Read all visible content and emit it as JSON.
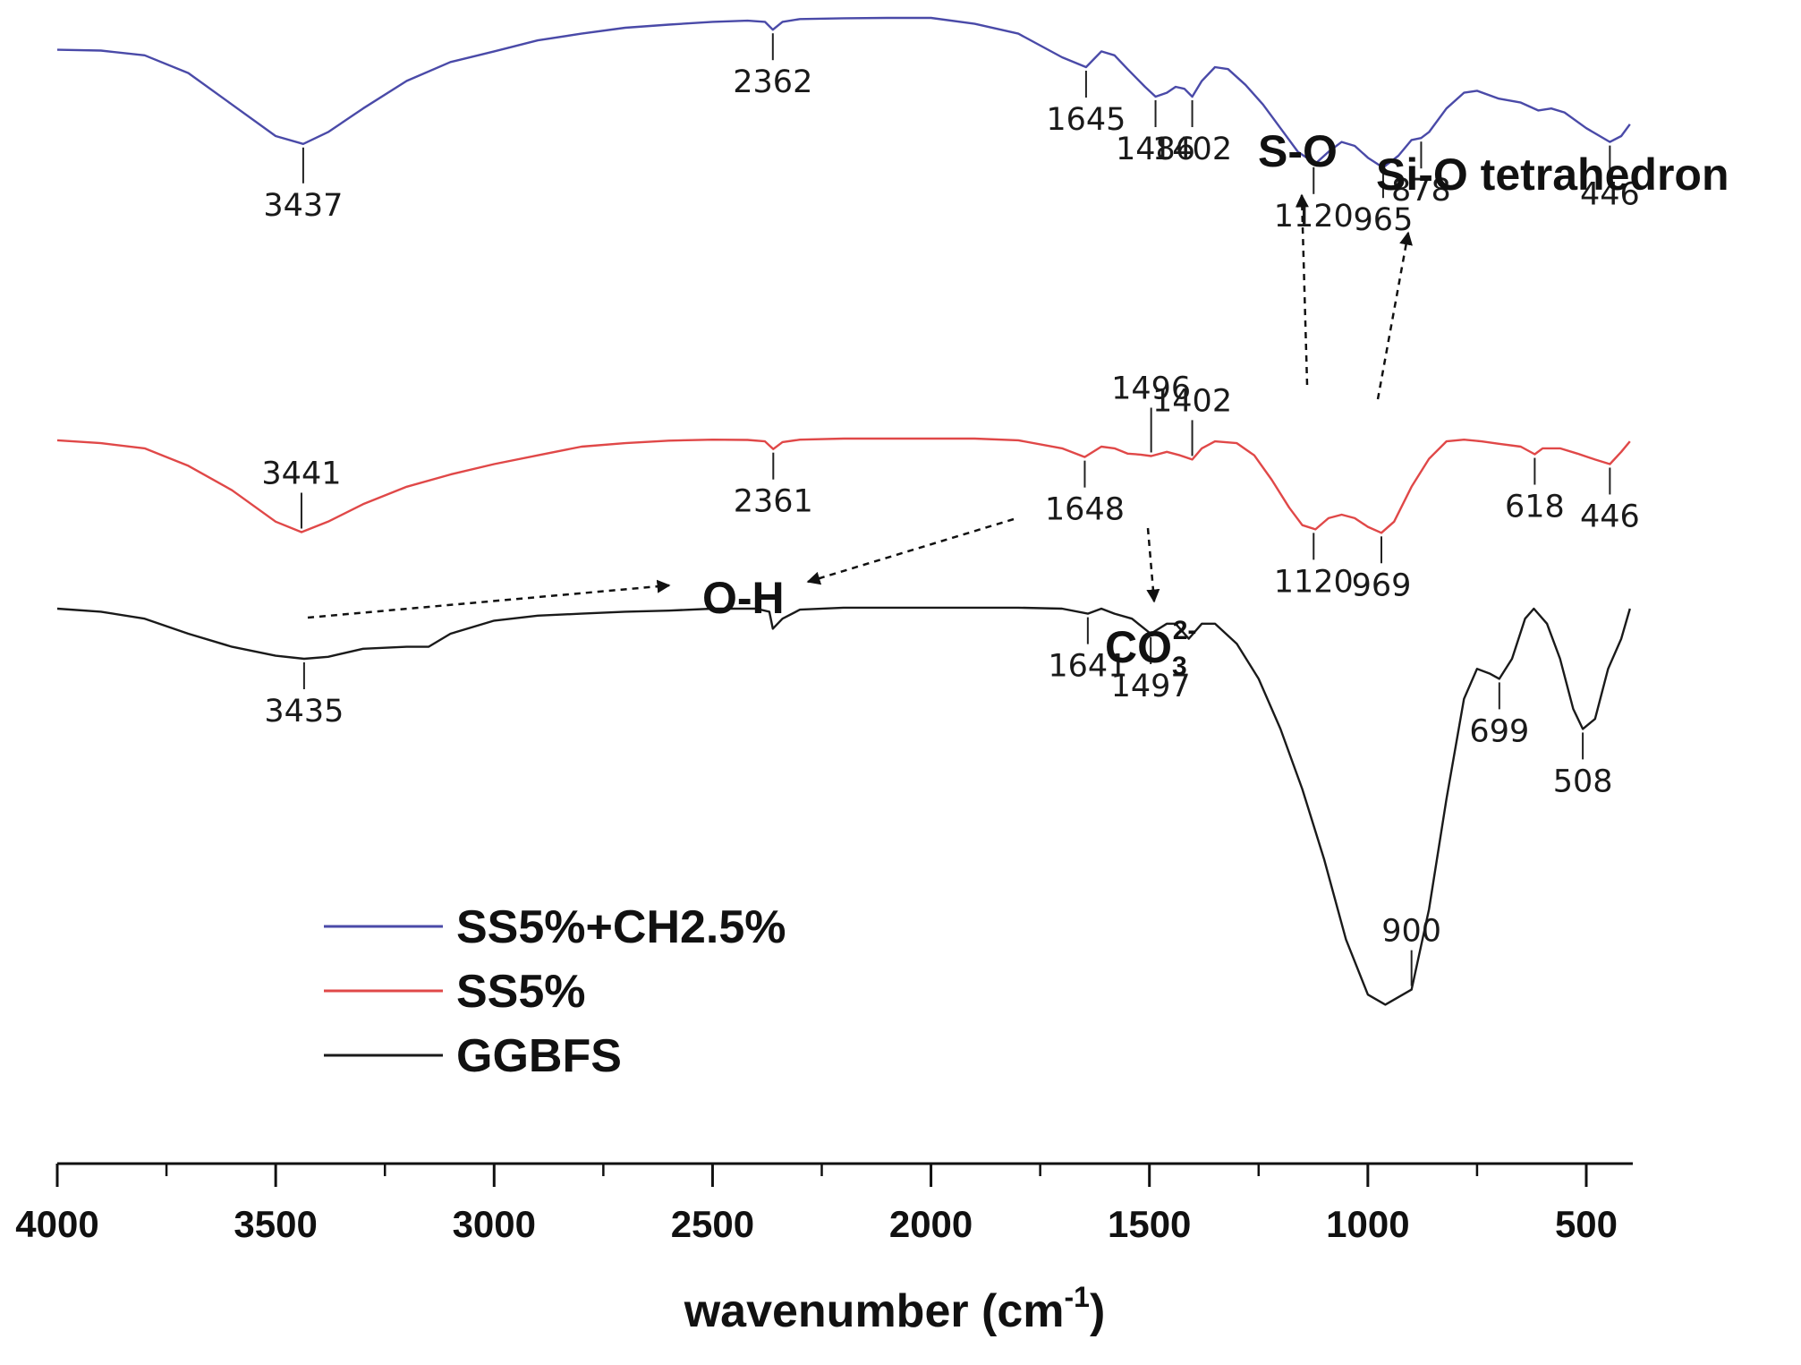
{
  "chart_data": {
    "type": "line",
    "title": "",
    "xlabel": "wavenumber (cm",
    "xlabel_superscript": "-1",
    "xlabel_suffix": ")",
    "ylabel": "",
    "xlim": [
      4000,
      400
    ],
    "x_reversed": true,
    "ylim": [
      0,
      1
    ],
    "x_ticks": [
      4000,
      3500,
      3000,
      2500,
      2000,
      1500,
      1000,
      500
    ],
    "x_tick_labels": [
      "4000",
      "3500",
      "3000",
      "2500",
      "2000",
      "1500",
      "1000",
      "500"
    ],
    "legend_position": "bottom-left",
    "series": [
      {
        "name": "SS5%+CH2.5%",
        "color": "#4a4aa8",
        "points": [
          [
            4000,
            0.919
          ],
          [
            3900,
            0.917
          ],
          [
            3800,
            0.905
          ],
          [
            3700,
            0.86
          ],
          [
            3600,
            0.78
          ],
          [
            3500,
            0.7
          ],
          [
            3437,
            0.68
          ],
          [
            3380,
            0.71
          ],
          [
            3300,
            0.77
          ],
          [
            3200,
            0.84
          ],
          [
            3100,
            0.888
          ],
          [
            3000,
            0.915
          ],
          [
            2900,
            0.943
          ],
          [
            2800,
            0.96
          ],
          [
            2700,
            0.975
          ],
          [
            2600,
            0.983
          ],
          [
            2500,
            0.99
          ],
          [
            2420,
            0.993
          ],
          [
            2380,
            0.99
          ],
          [
            2362,
            0.97
          ],
          [
            2340,
            0.99
          ],
          [
            2300,
            0.997
          ],
          [
            2200,
            0.999
          ],
          [
            2100,
            1.0
          ],
          [
            2000,
            1.0
          ],
          [
            1900,
            0.985
          ],
          [
            1800,
            0.96
          ],
          [
            1700,
            0.9
          ],
          [
            1645,
            0.875
          ],
          [
            1610,
            0.915
          ],
          [
            1580,
            0.905
          ],
          [
            1550,
            0.87
          ],
          [
            1510,
            0.825
          ],
          [
            1486,
            0.8
          ],
          [
            1460,
            0.81
          ],
          [
            1440,
            0.825
          ],
          [
            1420,
            0.82
          ],
          [
            1402,
            0.8
          ],
          [
            1380,
            0.84
          ],
          [
            1350,
            0.875
          ],
          [
            1320,
            0.87
          ],
          [
            1280,
            0.83
          ],
          [
            1240,
            0.78
          ],
          [
            1200,
            0.72
          ],
          [
            1160,
            0.66
          ],
          [
            1120,
            0.63
          ],
          [
            1090,
            0.66
          ],
          [
            1060,
            0.685
          ],
          [
            1030,
            0.675
          ],
          [
            1000,
            0.645
          ],
          [
            965,
            0.62
          ],
          [
            930,
            0.65
          ],
          [
            900,
            0.69
          ],
          [
            878,
            0.695
          ],
          [
            860,
            0.71
          ],
          [
            820,
            0.77
          ],
          [
            780,
            0.81
          ],
          [
            750,
            0.815
          ],
          [
            700,
            0.795
          ],
          [
            650,
            0.785
          ],
          [
            610,
            0.765
          ],
          [
            580,
            0.77
          ],
          [
            550,
            0.76
          ],
          [
            500,
            0.72
          ],
          [
            446,
            0.685
          ],
          [
            420,
            0.7
          ],
          [
            400,
            0.73
          ]
        ]
      },
      {
        "name": "SS5%",
        "color": "#e04848",
        "points": [
          [
            4000,
            0.713
          ],
          [
            3900,
            0.705
          ],
          [
            3800,
            0.69
          ],
          [
            3700,
            0.64
          ],
          [
            3600,
            0.57
          ],
          [
            3500,
            0.48
          ],
          [
            3441,
            0.45
          ],
          [
            3380,
            0.48
          ],
          [
            3300,
            0.53
          ],
          [
            3200,
            0.58
          ],
          [
            3100,
            0.615
          ],
          [
            3000,
            0.645
          ],
          [
            2900,
            0.67
          ],
          [
            2800,
            0.695
          ],
          [
            2700,
            0.705
          ],
          [
            2600,
            0.712
          ],
          [
            2500,
            0.715
          ],
          [
            2420,
            0.714
          ],
          [
            2380,
            0.71
          ],
          [
            2361,
            0.688
          ],
          [
            2340,
            0.708
          ],
          [
            2300,
            0.715
          ],
          [
            2200,
            0.718
          ],
          [
            2100,
            0.718
          ],
          [
            2000,
            0.718
          ],
          [
            1900,
            0.718
          ],
          [
            1800,
            0.713
          ],
          [
            1700,
            0.69
          ],
          [
            1648,
            0.665
          ],
          [
            1610,
            0.695
          ],
          [
            1580,
            0.69
          ],
          [
            1550,
            0.675
          ],
          [
            1520,
            0.672
          ],
          [
            1496,
            0.668
          ],
          [
            1460,
            0.68
          ],
          [
            1430,
            0.67
          ],
          [
            1402,
            0.658
          ],
          [
            1380,
            0.69
          ],
          [
            1350,
            0.71
          ],
          [
            1300,
            0.705
          ],
          [
            1260,
            0.67
          ],
          [
            1220,
            0.6
          ],
          [
            1180,
            0.52
          ],
          [
            1150,
            0.47
          ],
          [
            1120,
            0.458
          ],
          [
            1090,
            0.49
          ],
          [
            1060,
            0.5
          ],
          [
            1030,
            0.49
          ],
          [
            1000,
            0.465
          ],
          [
            969,
            0.448
          ],
          [
            940,
            0.48
          ],
          [
            900,
            0.58
          ],
          [
            860,
            0.66
          ],
          [
            820,
            0.71
          ],
          [
            780,
            0.715
          ],
          [
            740,
            0.71
          ],
          [
            700,
            0.703
          ],
          [
            650,
            0.695
          ],
          [
            618,
            0.673
          ],
          [
            600,
            0.69
          ],
          [
            560,
            0.69
          ],
          [
            520,
            0.675
          ],
          [
            480,
            0.658
          ],
          [
            446,
            0.645
          ],
          [
            420,
            0.68
          ],
          [
            400,
            0.71
          ]
        ]
      },
      {
        "name": "GGBFS",
        "color": "#1a1a1a",
        "points": [
          [
            4000,
            0.5
          ],
          [
            3900,
            0.497
          ],
          [
            3800,
            0.49
          ],
          [
            3700,
            0.475
          ],
          [
            3600,
            0.462
          ],
          [
            3500,
            0.453
          ],
          [
            3435,
            0.45
          ],
          [
            3380,
            0.452
          ],
          [
            3300,
            0.46
          ],
          [
            3200,
            0.462
          ],
          [
            3150,
            0.462
          ],
          [
            3100,
            0.475
          ],
          [
            3000,
            0.488
          ],
          [
            2900,
            0.493
          ],
          [
            2800,
            0.495
          ],
          [
            2700,
            0.497
          ],
          [
            2600,
            0.498
          ],
          [
            2500,
            0.5
          ],
          [
            2400,
            0.5
          ],
          [
            2370,
            0.497
          ],
          [
            2362,
            0.48
          ],
          [
            2340,
            0.49
          ],
          [
            2300,
            0.499
          ],
          [
            2200,
            0.501
          ],
          [
            2100,
            0.501
          ],
          [
            2000,
            0.501
          ],
          [
            1900,
            0.501
          ],
          [
            1800,
            0.501
          ],
          [
            1700,
            0.5
          ],
          [
            1641,
            0.495
          ],
          [
            1610,
            0.5
          ],
          [
            1580,
            0.495
          ],
          [
            1540,
            0.49
          ],
          [
            1497,
            0.475
          ],
          [
            1460,
            0.485
          ],
          [
            1440,
            0.485
          ],
          [
            1410,
            0.47
          ],
          [
            1380,
            0.485
          ],
          [
            1350,
            0.485
          ],
          [
            1300,
            0.465
          ],
          [
            1250,
            0.43
          ],
          [
            1200,
            0.38
          ],
          [
            1150,
            0.32
          ],
          [
            1100,
            0.25
          ],
          [
            1050,
            0.17
          ],
          [
            1000,
            0.115
          ],
          [
            960,
            0.105
          ],
          [
            900,
            0.12
          ],
          [
            860,
            0.2
          ],
          [
            820,
            0.31
          ],
          [
            780,
            0.41
          ],
          [
            750,
            0.44
          ],
          [
            720,
            0.435
          ],
          [
            699,
            0.43
          ],
          [
            670,
            0.45
          ],
          [
            640,
            0.49
          ],
          [
            620,
            0.5
          ],
          [
            590,
            0.485
          ],
          [
            560,
            0.45
          ],
          [
            530,
            0.4
          ],
          [
            508,
            0.38
          ],
          [
            480,
            0.39
          ],
          [
            450,
            0.44
          ],
          [
            420,
            0.47
          ],
          [
            400,
            0.5
          ]
        ]
      }
    ],
    "peak_labels": [
      {
        "series": "SS5%+CH2.5%",
        "items": [
          "3437",
          "2362",
          "1645",
          "1486",
          "1402",
          "1120",
          "965",
          "878",
          "446"
        ]
      },
      {
        "series": "SS5%",
        "items": [
          "3441",
          "2361",
          "1648",
          "1496",
          "1402",
          "1120",
          "969",
          "618",
          "446"
        ]
      },
      {
        "series": "GGBFS",
        "items": [
          "3435",
          "1641",
          "1497",
          "900",
          "699",
          "508"
        ]
      }
    ],
    "annotations": {
      "so": "S-O",
      "sio": "Si-O tetrahedron",
      "oh": "O-H",
      "co3_base": "CO",
      "co3_sub": "3",
      "co3_sup": "2-"
    }
  }
}
